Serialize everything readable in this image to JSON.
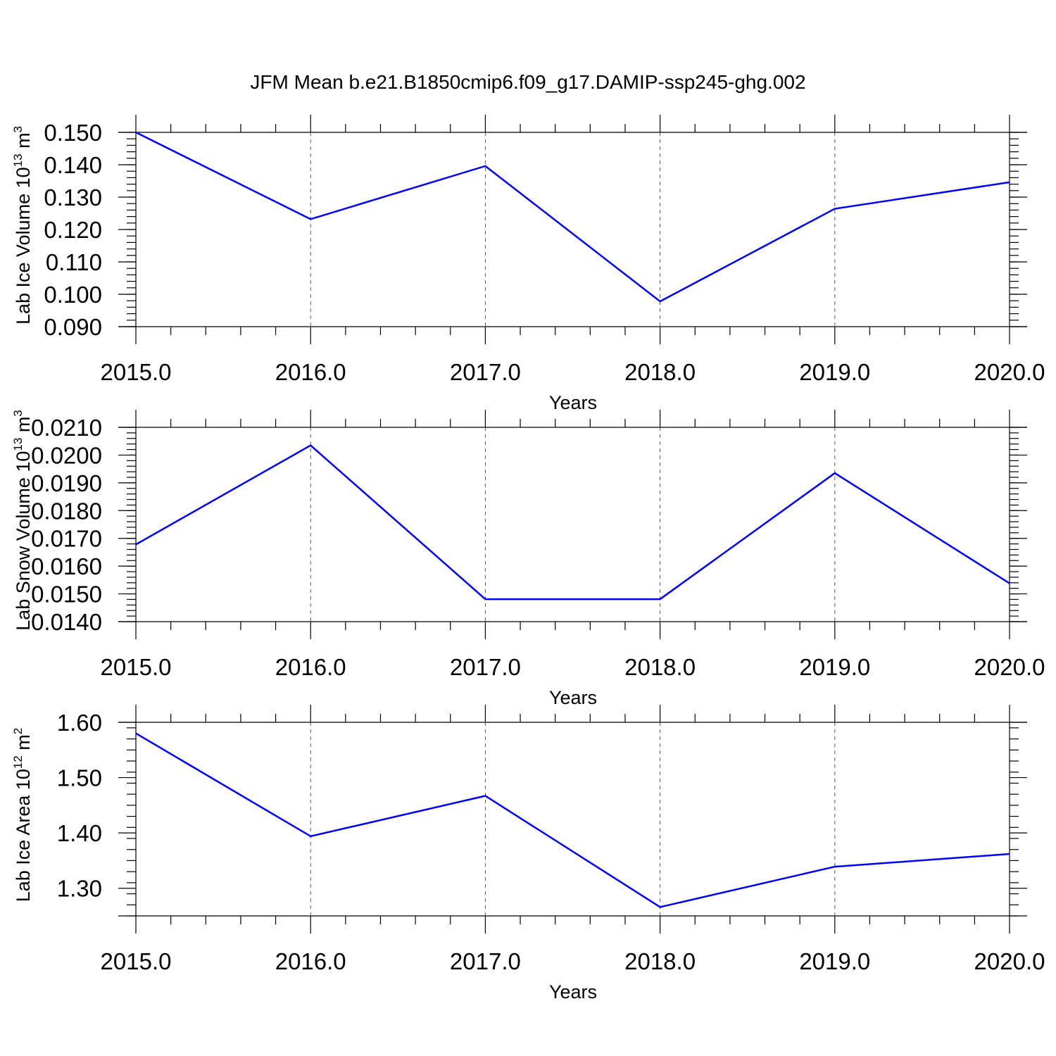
{
  "title": "JFM Mean b.e21.B1850cmip6.f09_g17.DAMIP-ssp245-ghg.002",
  "line_color": "#0000ff",
  "chart_data": [
    {
      "type": "line",
      "xlabel": "Years",
      "ylabel": {
        "text": "Lab Ice Volume 10",
        "sup": "13",
        "tail": " m",
        "sup2": "3"
      },
      "x": [
        2015,
        2016,
        2017,
        2018,
        2019,
        2020
      ],
      "x_ticks": [
        "2015.0",
        "2016.0",
        "2017.0",
        "2018.0",
        "2019.0",
        "2020.0"
      ],
      "y_ticks": [
        "0.090",
        "0.100",
        "0.110",
        "0.120",
        "0.130",
        "0.140",
        "0.150"
      ],
      "ylim": [
        0.09,
        0.15
      ],
      "values": [
        0.15,
        0.1232,
        0.1396,
        0.0978,
        0.1264,
        0.1346
      ],
      "grid": "vertical-dashed"
    },
    {
      "type": "line",
      "xlabel": "Years",
      "ylabel": {
        "text": "Lab Snow Volume 10",
        "sup": "13",
        "tail": " m",
        "sup2": "3"
      },
      "x": [
        2015,
        2016,
        2017,
        2018,
        2019,
        2020
      ],
      "x_ticks": [
        "2015.0",
        "2016.0",
        "2017.0",
        "2018.0",
        "2019.0",
        "2020.0"
      ],
      "y_ticks": [
        "0.0140",
        "0.0150",
        "0.0160",
        "0.0170",
        "0.0180",
        "0.0190",
        "0.0200",
        "0.0210"
      ],
      "ylim": [
        0.014,
        0.021
      ],
      "values": [
        0.01678,
        0.02035,
        0.01481,
        0.01481,
        0.01935,
        0.01538
      ],
      "grid": "vertical-dashed"
    },
    {
      "type": "line",
      "xlabel": "Years",
      "ylabel": {
        "text": "Lab Ice Area 10",
        "sup": "12",
        "tail": " m",
        "sup2": "2"
      },
      "x": [
        2015,
        2016,
        2017,
        2018,
        2019,
        2020
      ],
      "x_ticks": [
        "2015.0",
        "2016.0",
        "2017.0",
        "2018.0",
        "2019.0",
        "2020.0"
      ],
      "y_ticks": [
        "1.30",
        "1.40",
        "1.50",
        "1.60"
      ],
      "ylim": [
        1.25,
        1.6
      ],
      "values": [
        1.58,
        1.394,
        1.467,
        1.266,
        1.339,
        1.362
      ],
      "grid": "vertical-dashed"
    }
  ]
}
